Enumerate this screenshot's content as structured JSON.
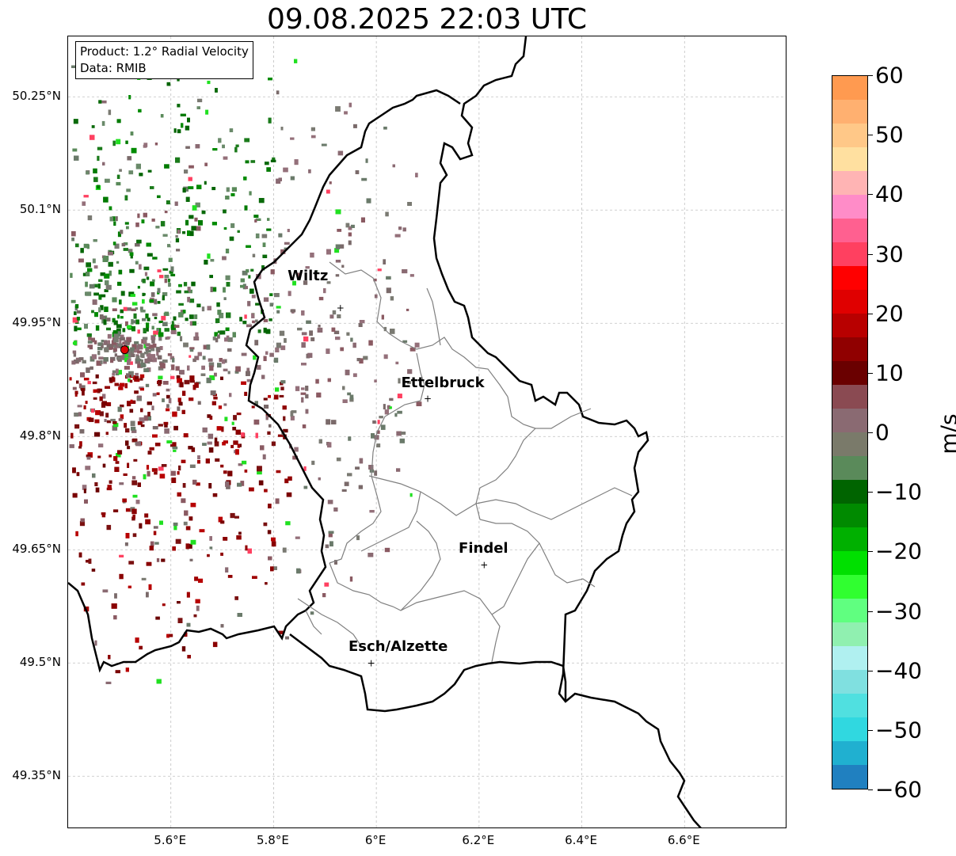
{
  "title": "09.08.2025 22:03 UTC",
  "info": {
    "product": "Product: 1.2° Radial Velocity",
    "data": "Data: RMIB"
  },
  "axes": {
    "lat_labels": [
      "50.25°N",
      "50.1°N",
      "49.95°N",
      "49.8°N",
      "49.65°N",
      "49.5°N",
      "49.35°N"
    ],
    "lat_values": [
      50.25,
      50.1,
      49.95,
      49.8,
      49.65,
      49.5,
      49.35
    ],
    "lon_labels": [
      "5.6°E",
      "5.8°E",
      "6°E",
      "6.2°E",
      "6.4°E",
      "6.6°E"
    ],
    "lon_values": [
      5.6,
      5.8,
      6.0,
      6.2,
      6.4,
      6.6
    ]
  },
  "cities": [
    {
      "name": "Wiltz",
      "lon": 5.93,
      "lat": 49.97
    },
    {
      "name": "Ettelbruck",
      "lon": 6.1,
      "lat": 49.85
    },
    {
      "name": "Findel",
      "lon": 6.21,
      "lat": 49.63
    },
    {
      "name": "Esch/Alzette",
      "lon": 5.99,
      "lat": 49.5
    }
  ],
  "radar_site": {
    "lon": 5.51,
    "lat": 49.915
  },
  "colorbar": {
    "unit": "m/s",
    "tick_labels": [
      "60",
      "50",
      "40",
      "30",
      "20",
      "10",
      "0",
      "−10",
      "−20",
      "−30",
      "−40",
      "−50",
      "−60"
    ],
    "min": -60,
    "max": 60,
    "colors": [
      "#ff9a50",
      "#ffb070",
      "#ffc888",
      "#ffe0a0",
      "#ffb4b4",
      "#ff8cc8",
      "#ff6090",
      "#ff4060",
      "#ff0000",
      "#e00000",
      "#b80000",
      "#900000",
      "#6a0000",
      "#8a4a52",
      "#8a6a72",
      "#7a7a6a",
      "#5a8a5a",
      "#006400",
      "#008a00",
      "#00b000",
      "#00e000",
      "#30ff30",
      "#60ff80",
      "#90f0b0",
      "#b0f0f0",
      "#80e0e0",
      "#50e0e0",
      "#30d8e0",
      "#20b0d0",
      "#2080c0"
    ]
  }
}
